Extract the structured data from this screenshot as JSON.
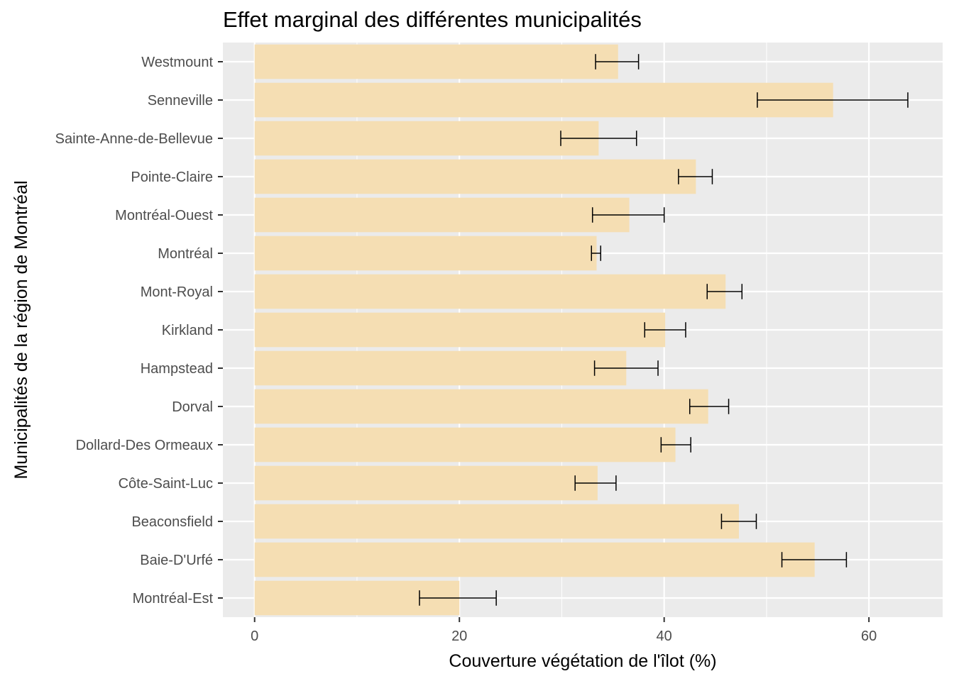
{
  "chart_data": {
    "type": "bar",
    "orientation": "horizontal",
    "title": "Effet marginal des différentes municipalités",
    "xlabel": "Couverture végétation de l'îlot (%)",
    "ylabel": "Municipalités de la région de Montréal",
    "xlim": [
      -3.1,
      67.2
    ],
    "xticks": [
      0,
      20,
      40,
      60
    ],
    "grid": true,
    "bar_color": "#F5DEB3",
    "panel_color": "#EBEBEB",
    "categories": [
      "Montréal-Est",
      "Baie-D'Urfé",
      "Beaconsfield",
      "Côte-Saint-Luc",
      "Dollard-Des Ormeaux",
      "Dorval",
      "Hampstead",
      "Kirkland",
      "Mont-Royal",
      "Montréal",
      "Montréal-Ouest",
      "Pointe-Claire",
      "Sainte-Anne-de-Bellevue",
      "Senneville",
      "Westmount"
    ],
    "values": [
      20.0,
      54.7,
      47.3,
      33.5,
      41.1,
      44.3,
      36.3,
      40.1,
      46.0,
      33.4,
      36.6,
      43.1,
      33.6,
      56.5,
      35.5
    ],
    "error_low": [
      16.1,
      51.5,
      45.6,
      31.3,
      39.7,
      42.5,
      33.2,
      38.1,
      44.2,
      32.9,
      33.0,
      41.4,
      29.9,
      49.1,
      33.3
    ],
    "error_high": [
      23.6,
      57.8,
      49.0,
      35.3,
      42.6,
      46.3,
      39.4,
      42.1,
      47.6,
      33.8,
      40.0,
      44.7,
      37.3,
      63.8,
      37.5
    ]
  }
}
